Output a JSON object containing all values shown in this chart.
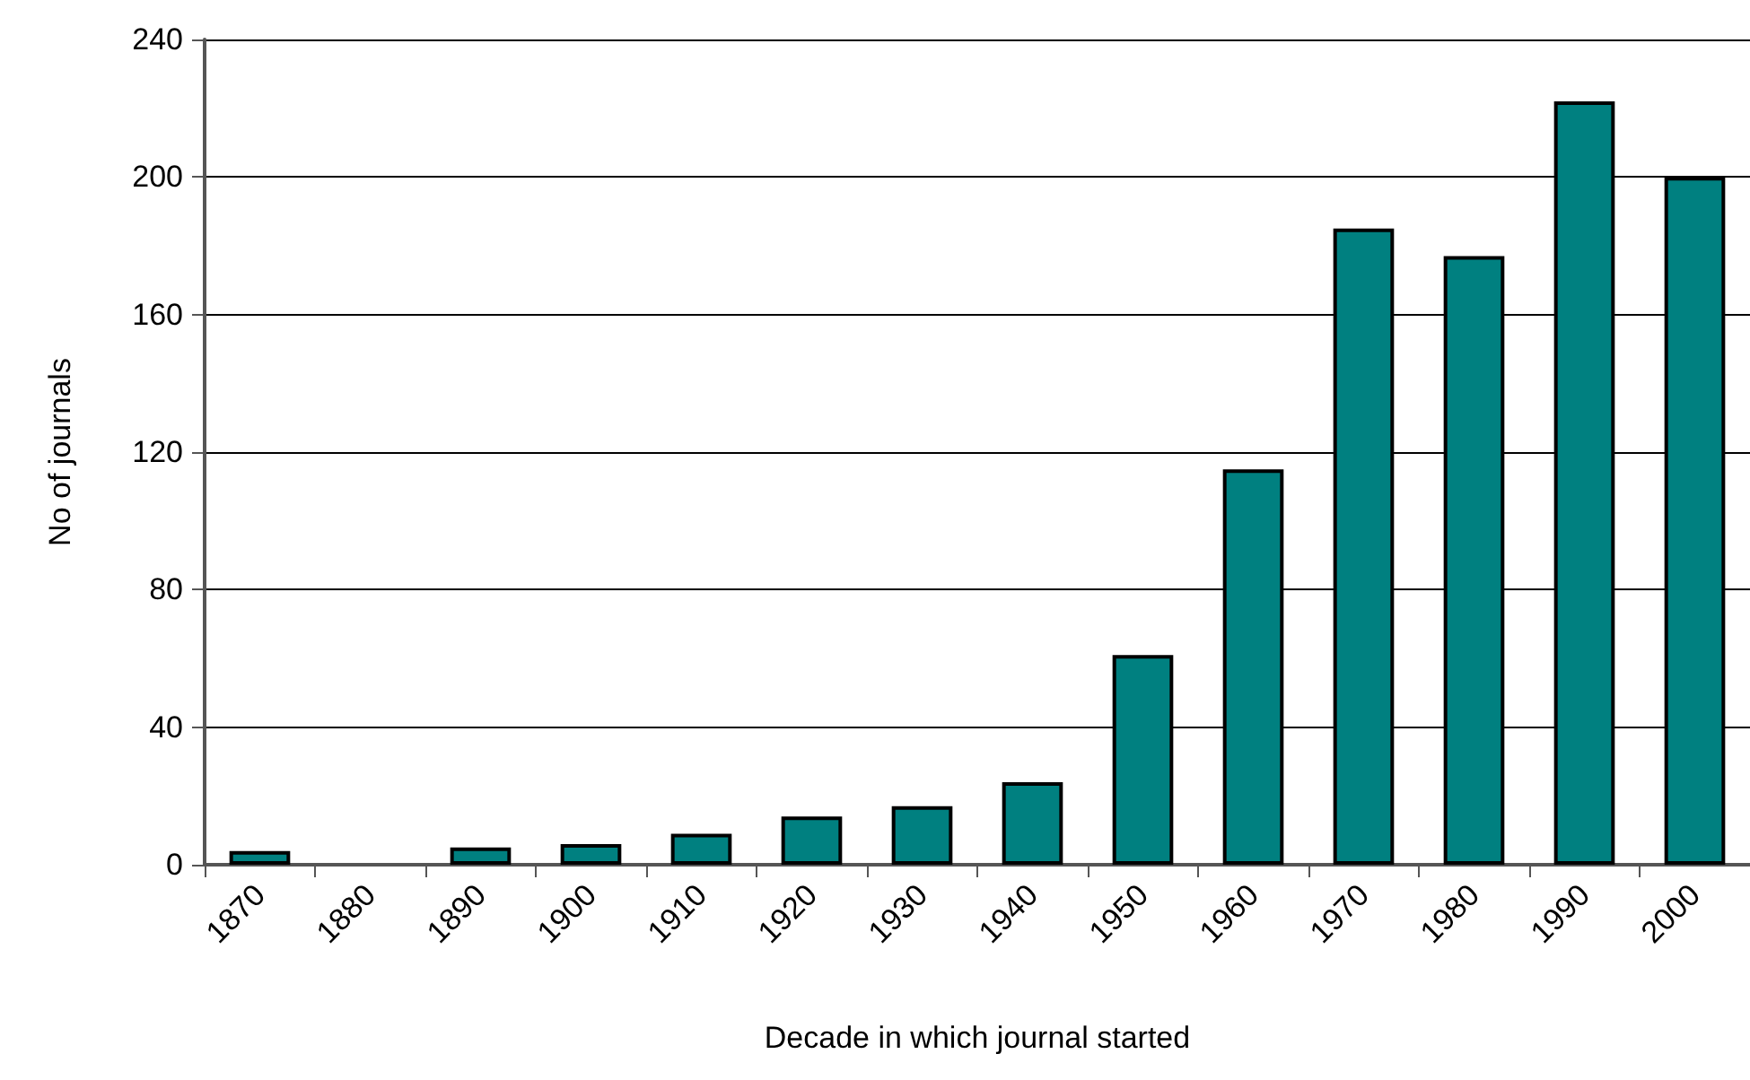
{
  "chart_data": {
    "type": "bar",
    "xlabel": "Decade in which journal started",
    "ylabel": "No of journals",
    "categories": [
      "1870",
      "1880",
      "1890",
      "1900",
      "1910",
      "1920",
      "1930",
      "1940",
      "1950",
      "1960",
      "1970",
      "1980",
      "1990",
      "2000"
    ],
    "values": [
      4,
      0,
      5,
      6,
      9,
      14,
      17,
      24,
      61,
      115,
      185,
      177,
      222,
      200
    ],
    "color": "#008080",
    "ylim": [
      0,
      240
    ],
    "yticks": [
      0,
      40,
      80,
      120,
      160,
      200,
      240
    ],
    "grid": "y"
  }
}
